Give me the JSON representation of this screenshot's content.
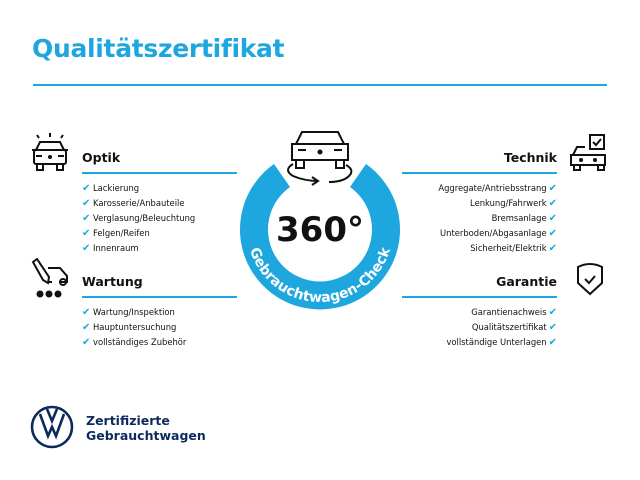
{
  "title": "Qualitätszertifikat",
  "badge": {
    "value": "360°",
    "caption": "Gebrauchtwagen-Check",
    "color": "#1ea6df"
  },
  "sections": {
    "optik": {
      "heading": "Optik",
      "icon": "car-lights-icon",
      "items": [
        "Lackierung",
        "Karosserie/Anbauteile",
        "Verglasung/Beleuchtung",
        "Felgen/Reifen",
        "Innenraum"
      ]
    },
    "wartung": {
      "heading": "Wartung",
      "icon": "service-tools-icon",
      "items": [
        "Wartung/Inspektion",
        "Hauptuntersuchung",
        "vollständiges Zubehör"
      ]
    },
    "technik": {
      "heading": "Technik",
      "icon": "car-checkbox-icon",
      "items": [
        "Aggregate/Antriebsstrang",
        "Lenkung/Fahrwerk",
        "Bremsanlage",
        "Unterboden/Abgasanlage",
        "Sicherheit/Elektrik"
      ]
    },
    "garantie": {
      "heading": "Garantie",
      "icon": "shield-check-icon",
      "items": [
        "Garantienachweis",
        "Qualitätszertifikat",
        "vollständige Unterlagen"
      ]
    }
  },
  "check_symbol": "✔",
  "footer": {
    "line1": "Zertifizierte",
    "line2": "Gebrauchtwagen",
    "brand_color": "#0d2a5c"
  }
}
